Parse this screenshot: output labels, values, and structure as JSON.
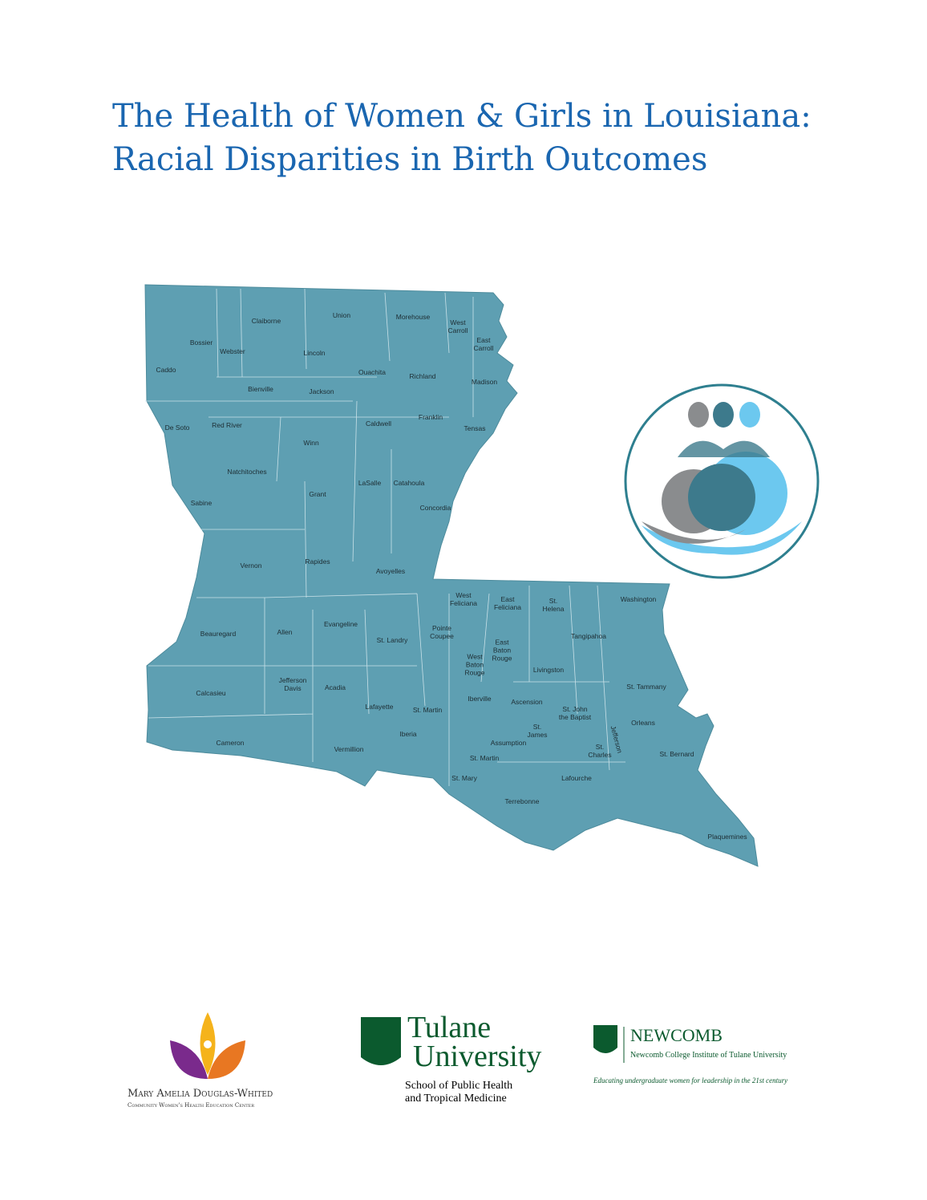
{
  "header": {
    "title_line1": "The Health of Women & Girls in Louisiana:",
    "title_line2": "Racial Disparities in Birth Outcomes"
  },
  "map": {
    "parishes": [
      "Claiborne",
      "Union",
      "Morehouse",
      "West\nCarroll",
      "East\nCarroll",
      "Bossier",
      "Webster",
      "Lincoln",
      "Caddo",
      "Ouachita",
      "Richland",
      "Madison",
      "Bienville",
      "Jackson",
      "Franklin",
      "Caldwell",
      "Tensas",
      "De Soto",
      "Red River",
      "Winn",
      "Natchitoches",
      "LaSalle",
      "Catahoula",
      "Grant",
      "Concordia",
      "Sabine",
      "Rapides",
      "Vernon",
      "Avoyelles",
      "West\nFeliciana",
      "East\nFeliciana",
      "St.\nHelena",
      "Washington",
      "Evangeline",
      "Allen",
      "Beauregard",
      "St. Landry",
      "Pointe\nCoupee",
      "East\nBaton\nRouge",
      "Tangipahoa",
      "West\nBaton\nRouge",
      "Livingston",
      "Jefferson\nDavis",
      "Acadia",
      "St. Tammany",
      "Calcasieu",
      "Iberville",
      "Ascension",
      "Lafayette",
      "St. Martin",
      "St. John\nthe Baptist",
      "Orleans",
      "St.\nJames",
      "Iberia",
      "Assumption",
      "Jefferson",
      "Cameron",
      "Vermillion",
      "St.\nCharles",
      "St. Bernard",
      "St. Martin",
      "St. Mary",
      "Lafourche",
      "Terrebonne",
      "Plaquemines"
    ]
  },
  "logos": {
    "whited": {
      "name": "Mary Amelia Douglas-Whited",
      "subtitle": "Community Women's Health Education Center"
    },
    "tulane": {
      "line1": "Tulane",
      "line2": "University",
      "school1": "School of Public Health",
      "school2": "and Tropical Medicine"
    },
    "newcomb": {
      "name": "NEWCOMB",
      "subtitle": "Newcomb College Institute of Tulane University",
      "tagline": "Educating undergraduate women for leadership in the 21st century"
    }
  }
}
